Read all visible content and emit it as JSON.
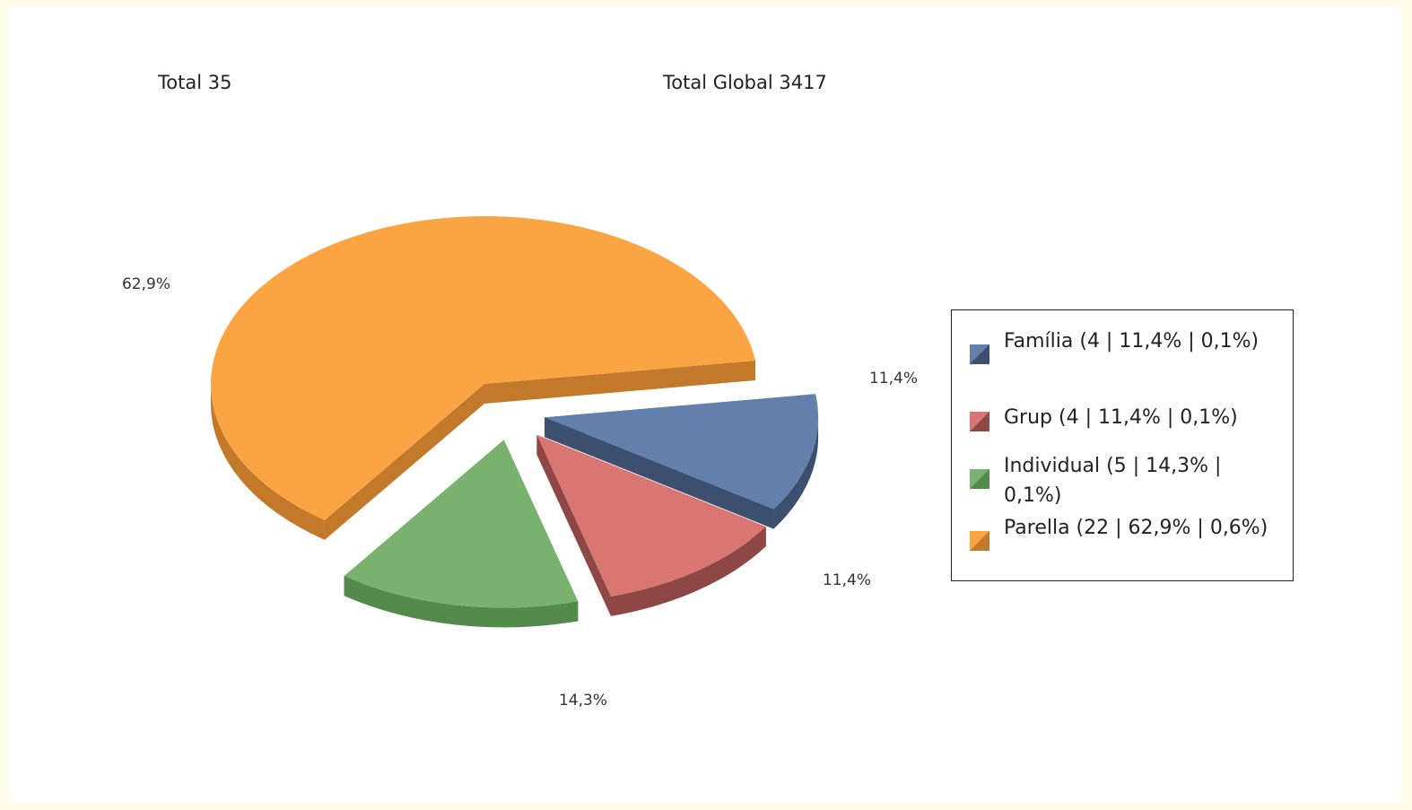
{
  "header": {
    "total": "Total 35",
    "total_global": "Total Global 3417"
  },
  "chart_data": {
    "type": "pie",
    "style": "3d-exploded",
    "legend_position": "right",
    "slices": [
      {
        "name": "Família",
        "value": 4,
        "percent": 11.4,
        "global_percent": 0.1,
        "label": "11,4%",
        "legend": "Família (4 | 11,4% | 0,1%)",
        "color": "#6380ad",
        "side_color": "#3c4f6e"
      },
      {
        "name": "Grup",
        "value": 4,
        "percent": 11.4,
        "global_percent": 0.1,
        "label": "11,4%",
        "legend": "Grup (4 | 11,4% | 0,1%)",
        "color": "#d97671",
        "side_color": "#8e4744"
      },
      {
        "name": "Individual",
        "value": 5,
        "percent": 14.3,
        "global_percent": 0.1,
        "label": "14,3%",
        "legend": "Individual (5 | 14,3% | 0,1%)",
        "color": "#79b26f",
        "side_color": "#558a4d"
      },
      {
        "name": "Parella",
        "value": 22,
        "percent": 62.9,
        "global_percent": 0.6,
        "label": "62,9%",
        "legend": "Parella (22 | 62,9% | 0,6%)",
        "color": "#fba443",
        "side_color": "#c27a2a"
      }
    ]
  }
}
